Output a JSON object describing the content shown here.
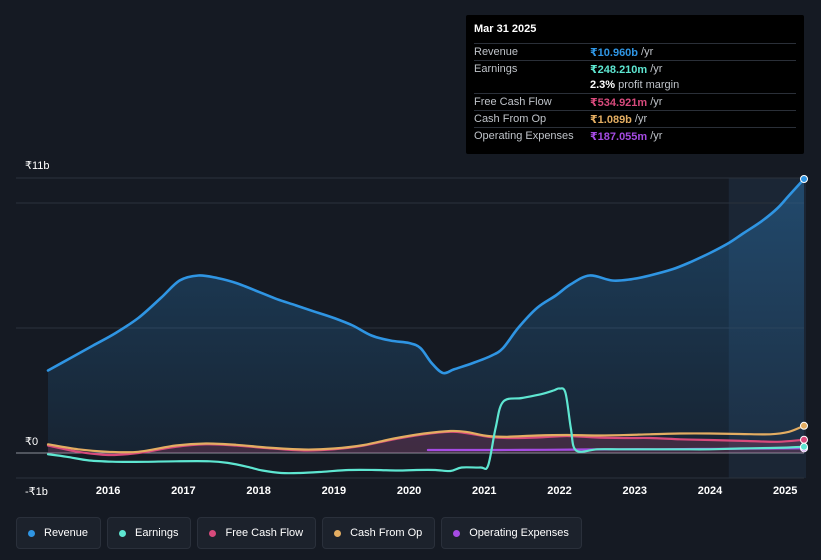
{
  "tooltip": {
    "date": "Mar 31 2025",
    "rows": {
      "revenue": {
        "label": "Revenue",
        "value": "₹10.960b",
        "unit": "/yr"
      },
      "earnings": {
        "label": "Earnings",
        "value": "₹248.210m",
        "unit": "/yr"
      },
      "margin": {
        "value": "2.3%",
        "unit": "profit margin"
      },
      "fcf": {
        "label": "Free Cash Flow",
        "value": "₹534.921m",
        "unit": "/yr"
      },
      "cfo": {
        "label": "Cash From Op",
        "value": "₹1.089b",
        "unit": "/yr"
      },
      "opex": {
        "label": "Operating Expenses",
        "value": "₹187.055m",
        "unit": "/yr"
      }
    }
  },
  "legend": {
    "revenue": "Revenue",
    "earnings": "Earnings",
    "fcf": "Free Cash Flow",
    "cfo": "Cash From Op",
    "opex": "Operating Expenses"
  },
  "colors": {
    "revenue": "#2f95e3",
    "earnings": "#5ee6d1",
    "fcf": "#d84a7c",
    "cfo": "#e3ad62",
    "opex": "#a54be3",
    "background": "#151a23",
    "forecast_band": "#1b2635"
  },
  "chart_data": {
    "type": "line",
    "title": "",
    "xlabel": "",
    "ylabel": "",
    "unit": "₹ billions",
    "ylim": [
      -1,
      11
    ],
    "xlim": [
      2015.2,
      2025.25
    ],
    "y_tick_labels": [
      {
        "value": 11,
        "label": "₹11b"
      },
      {
        "value": 0,
        "label": "₹0"
      },
      {
        "value": -1,
        "label": "-₹1b"
      }
    ],
    "x_ticks": [
      "2016",
      "2017",
      "2018",
      "2019",
      "2020",
      "2021",
      "2022",
      "2023",
      "2024",
      "2025"
    ],
    "highlight_start": 2024.25,
    "series": [
      {
        "key": "revenue",
        "name": "Revenue",
        "fill": true,
        "points": [
          [
            2015.2,
            3.3
          ],
          [
            2015.5,
            3.8
          ],
          [
            2015.8,
            4.3
          ],
          [
            2016.1,
            4.8
          ],
          [
            2016.4,
            5.4
          ],
          [
            2016.7,
            6.2
          ],
          [
            2016.95,
            6.9
          ],
          [
            2017.2,
            7.1
          ],
          [
            2017.45,
            7.0
          ],
          [
            2017.7,
            6.8
          ],
          [
            2018.0,
            6.45
          ],
          [
            2018.25,
            6.15
          ],
          [
            2018.5,
            5.9
          ],
          [
            2018.75,
            5.65
          ],
          [
            2019.0,
            5.4
          ],
          [
            2019.25,
            5.1
          ],
          [
            2019.5,
            4.7
          ],
          [
            2019.75,
            4.5
          ],
          [
            2020.0,
            4.4
          ],
          [
            2020.15,
            4.2
          ],
          [
            2020.3,
            3.6
          ],
          [
            2020.45,
            3.2
          ],
          [
            2020.6,
            3.35
          ],
          [
            2020.85,
            3.6
          ],
          [
            2021.1,
            3.9
          ],
          [
            2021.25,
            4.2
          ],
          [
            2021.45,
            5.0
          ],
          [
            2021.7,
            5.8
          ],
          [
            2021.95,
            6.3
          ],
          [
            2022.15,
            6.75
          ],
          [
            2022.4,
            7.1
          ],
          [
            2022.7,
            6.9
          ],
          [
            2022.95,
            6.95
          ],
          [
            2023.2,
            7.1
          ],
          [
            2023.5,
            7.35
          ],
          [
            2023.75,
            7.65
          ],
          [
            2024.0,
            8.0
          ],
          [
            2024.25,
            8.4
          ],
          [
            2024.45,
            8.8
          ],
          [
            2024.7,
            9.3
          ],
          [
            2024.9,
            9.8
          ],
          [
            2025.05,
            10.3
          ],
          [
            2025.25,
            10.96
          ]
        ]
      },
      {
        "key": "earnings",
        "name": "Earnings",
        "fill": false,
        "points": [
          [
            2015.2,
            -0.05
          ],
          [
            2015.45,
            -0.15
          ],
          [
            2015.75,
            -0.3
          ],
          [
            2016.1,
            -0.35
          ],
          [
            2016.5,
            -0.35
          ],
          [
            2016.9,
            -0.33
          ],
          [
            2017.35,
            -0.33
          ],
          [
            2017.6,
            -0.4
          ],
          [
            2017.85,
            -0.55
          ],
          [
            2018.05,
            -0.7
          ],
          [
            2018.3,
            -0.8
          ],
          [
            2018.55,
            -0.8
          ],
          [
            2018.85,
            -0.75
          ],
          [
            2019.2,
            -0.68
          ],
          [
            2019.55,
            -0.68
          ],
          [
            2019.85,
            -0.7
          ],
          [
            2020.1,
            -0.68
          ],
          [
            2020.35,
            -0.68
          ],
          [
            2020.55,
            -0.72
          ],
          [
            2020.7,
            -0.58
          ],
          [
            2020.95,
            -0.58
          ],
          [
            2021.05,
            -0.5
          ],
          [
            2021.15,
            1.0
          ],
          [
            2021.25,
            2.05
          ],
          [
            2021.5,
            2.2
          ],
          [
            2021.75,
            2.35
          ],
          [
            2021.92,
            2.5
          ],
          [
            2022.0,
            2.58
          ],
          [
            2022.08,
            2.4
          ],
          [
            2022.15,
            1.0
          ],
          [
            2022.22,
            0.1
          ],
          [
            2022.5,
            0.15
          ],
          [
            2022.8,
            0.15
          ],
          [
            2023.2,
            0.15
          ],
          [
            2023.6,
            0.15
          ],
          [
            2024.0,
            0.15
          ],
          [
            2024.4,
            0.18
          ],
          [
            2024.8,
            0.2
          ],
          [
            2025.05,
            0.22
          ],
          [
            2025.25,
            0.25
          ]
        ]
      },
      {
        "key": "fcf",
        "name": "Free Cash Flow",
        "fill": true,
        "points": [
          [
            2015.2,
            0.3
          ],
          [
            2015.6,
            0.05
          ],
          [
            2016.0,
            -0.08
          ],
          [
            2016.4,
            0.0
          ],
          [
            2016.9,
            0.25
          ],
          [
            2017.3,
            0.35
          ],
          [
            2017.7,
            0.3
          ],
          [
            2018.1,
            0.2
          ],
          [
            2018.6,
            0.1
          ],
          [
            2019.0,
            0.15
          ],
          [
            2019.4,
            0.3
          ],
          [
            2019.8,
            0.55
          ],
          [
            2020.2,
            0.75
          ],
          [
            2020.55,
            0.85
          ],
          [
            2020.75,
            0.8
          ],
          [
            2021.05,
            0.65
          ],
          [
            2021.3,
            0.6
          ],
          [
            2021.7,
            0.62
          ],
          [
            2022.1,
            0.68
          ],
          [
            2022.5,
            0.62
          ],
          [
            2022.9,
            0.6
          ],
          [
            2023.2,
            0.6
          ],
          [
            2023.6,
            0.55
          ],
          [
            2024.0,
            0.52
          ],
          [
            2024.5,
            0.48
          ],
          [
            2024.9,
            0.45
          ],
          [
            2025.25,
            0.53
          ]
        ]
      },
      {
        "key": "cfo",
        "name": "Cash From Op",
        "fill": false,
        "points": [
          [
            2015.2,
            0.35
          ],
          [
            2015.6,
            0.15
          ],
          [
            2016.0,
            0.05
          ],
          [
            2016.4,
            0.05
          ],
          [
            2016.9,
            0.3
          ],
          [
            2017.3,
            0.38
          ],
          [
            2017.7,
            0.33
          ],
          [
            2018.1,
            0.22
          ],
          [
            2018.6,
            0.14
          ],
          [
            2019.0,
            0.18
          ],
          [
            2019.4,
            0.32
          ],
          [
            2019.8,
            0.58
          ],
          [
            2020.2,
            0.78
          ],
          [
            2020.55,
            0.88
          ],
          [
            2020.75,
            0.85
          ],
          [
            2021.05,
            0.68
          ],
          [
            2021.3,
            0.65
          ],
          [
            2021.7,
            0.7
          ],
          [
            2022.1,
            0.72
          ],
          [
            2022.5,
            0.7
          ],
          [
            2022.9,
            0.72
          ],
          [
            2023.2,
            0.75
          ],
          [
            2023.6,
            0.78
          ],
          [
            2024.0,
            0.78
          ],
          [
            2024.4,
            0.76
          ],
          [
            2024.8,
            0.75
          ],
          [
            2025.05,
            0.85
          ],
          [
            2025.25,
            1.089
          ]
        ]
      },
      {
        "key": "opex",
        "name": "Operating Expenses",
        "fill": false,
        "points": [
          [
            2020.25,
            0.12
          ],
          [
            2020.7,
            0.12
          ],
          [
            2021.2,
            0.12
          ],
          [
            2021.8,
            0.13
          ],
          [
            2022.3,
            0.14
          ],
          [
            2022.8,
            0.15
          ],
          [
            2023.3,
            0.15
          ],
          [
            2023.8,
            0.16
          ],
          [
            2024.3,
            0.17
          ],
          [
            2024.8,
            0.18
          ],
          [
            2025.25,
            0.187
          ]
        ]
      }
    ]
  }
}
